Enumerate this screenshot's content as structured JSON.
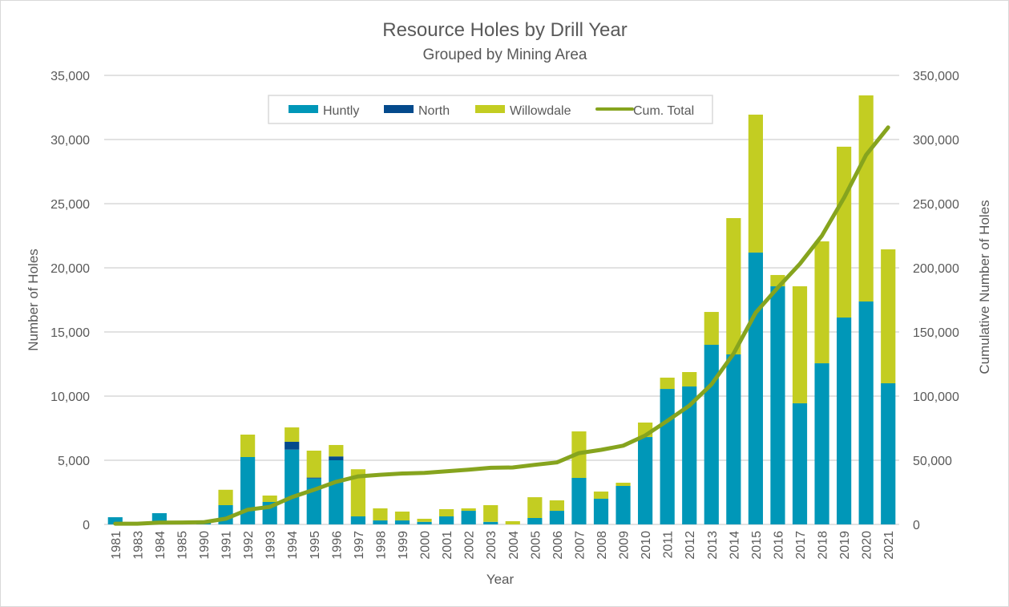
{
  "chart_data": {
    "type": "bar",
    "stacked": true,
    "title": "Resource Holes by Drill Year",
    "subtitle": "Grouped by Mining Area",
    "xlabel": "Year",
    "ylabel": "Number of Holes",
    "y2label": "Cumulative Number of Holes",
    "ylim": [
      0,
      35000
    ],
    "y2lim": [
      0,
      350000
    ],
    "yticks": [
      "0",
      "5,000",
      "10,000",
      "15,000",
      "20,000",
      "25,000",
      "30,000",
      "35,000"
    ],
    "y2ticks": [
      "0",
      "50,000",
      "100,000",
      "150,000",
      "200,000",
      "250,000",
      "300,000",
      "350,000"
    ],
    "ytick_values": [
      0,
      5000,
      10000,
      15000,
      20000,
      25000,
      30000,
      35000
    ],
    "y2tick_values": [
      0,
      50000,
      100000,
      150000,
      200000,
      250000,
      300000,
      350000
    ],
    "grid": true,
    "legend_position": "top-center",
    "categories": [
      "1981",
      "1983",
      "1984",
      "1985",
      "1990",
      "1991",
      "1992",
      "1993",
      "1994",
      "1995",
      "1996",
      "1997",
      "1998",
      "1999",
      "2000",
      "2001",
      "2002",
      "2003",
      "2004",
      "2005",
      "2006",
      "2007",
      "2008",
      "2009",
      "2010",
      "2011",
      "2012",
      "2013",
      "2014",
      "2015",
      "2016",
      "2017",
      "2018",
      "2019",
      "2020",
      "2021"
    ],
    "series": [
      {
        "name": "Huntly",
        "type": "bar",
        "axis": "left",
        "color": "#0097B8",
        "values": [
          560,
          30,
          875,
          50,
          170,
          1500,
          5250,
          1750,
          5830,
          3580,
          5000,
          625,
          310,
          310,
          200,
          625,
          1060,
          200,
          0,
          500,
          1060,
          3625,
          2000,
          3000,
          6810,
          10560,
          10750,
          14000,
          13250,
          21190,
          18560,
          9440,
          12560,
          16125,
          17375,
          11000
        ]
      },
      {
        "name": "North",
        "type": "bar",
        "axis": "left",
        "color": "#044A8C",
        "values": [
          0,
          0,
          0,
          0,
          0,
          0,
          0,
          0,
          610,
          70,
          300,
          0,
          0,
          0,
          0,
          0,
          0,
          0,
          0,
          0,
          0,
          0,
          0,
          0,
          0,
          0,
          0,
          0,
          0,
          0,
          0,
          0,
          0,
          0,
          0,
          0
        ]
      },
      {
        "name": "Willowdale",
        "type": "bar",
        "axis": "left",
        "color": "#C3CD22",
        "values": [
          0,
          0,
          0,
          0,
          30,
          1200,
          1750,
          500,
          1120,
          2100,
          890,
          3675,
          940,
          690,
          240,
          565,
          190,
          1300,
          250,
          1620,
          815,
          3625,
          560,
          250,
          1130,
          880,
          1125,
          2560,
          10625,
          10750,
          880,
          9120,
          9500,
          13315,
          16065,
          10440
        ]
      },
      {
        "name": "Cum. Total",
        "type": "line",
        "axis": "right",
        "color": "#86A41E",
        "values": [
          560,
          590,
          1465,
          1515,
          1715,
          4415,
          11415,
          13665,
          21225,
          26975,
          33165,
          37465,
          38715,
          39715,
          40155,
          41345,
          42595,
          44095,
          44345,
          46465,
          48340,
          55590,
          58150,
          61400,
          69340,
          80780,
          92655,
          109215,
          133090,
          165030,
          184470,
          203030,
          225090,
          254530,
          287970,
          309410
        ]
      }
    ]
  }
}
